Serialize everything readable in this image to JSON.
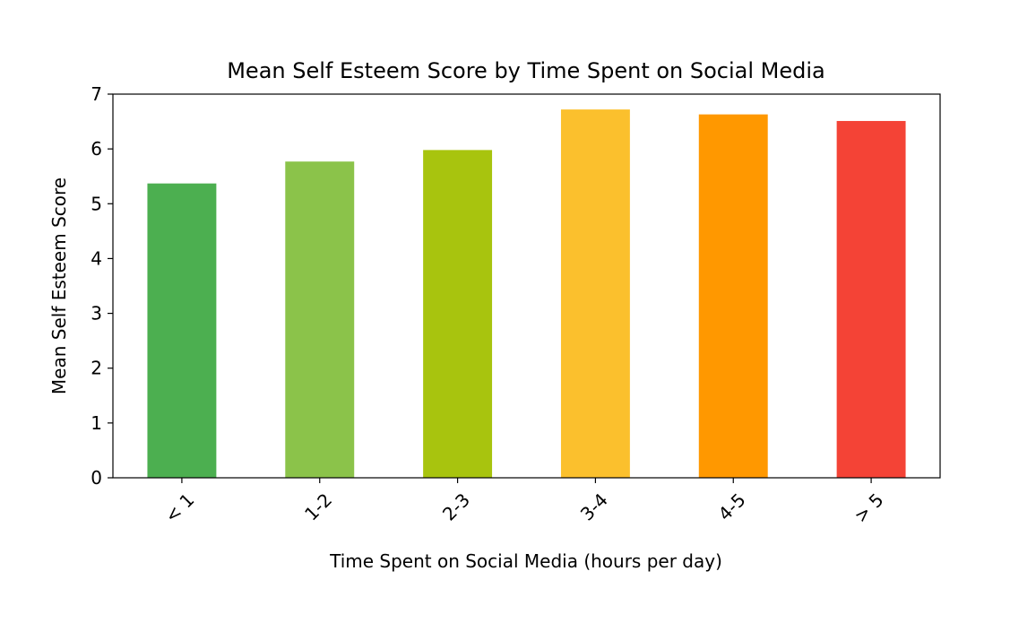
{
  "chart_data": {
    "type": "bar",
    "title": "Mean Self Esteem Score by Time Spent on Social Media",
    "xlabel": "Time Spent on Social Media (hours per day)",
    "ylabel": "Mean Self Esteem Score",
    "categories": [
      "< 1",
      "1-2",
      "2-3",
      "3-4",
      "4-5",
      "> 5"
    ],
    "values": [
      5.37,
      5.77,
      5.98,
      6.72,
      6.63,
      6.51
    ],
    "colors": [
      "#4caf50",
      "#8bc34a",
      "#a8c40e",
      "#fbc02d",
      "#ff9800",
      "#f44336"
    ],
    "ylim": [
      0,
      7
    ],
    "yticks": [
      0,
      1,
      2,
      3,
      4,
      5,
      6,
      7
    ],
    "grid": false,
    "legend": "none"
  }
}
